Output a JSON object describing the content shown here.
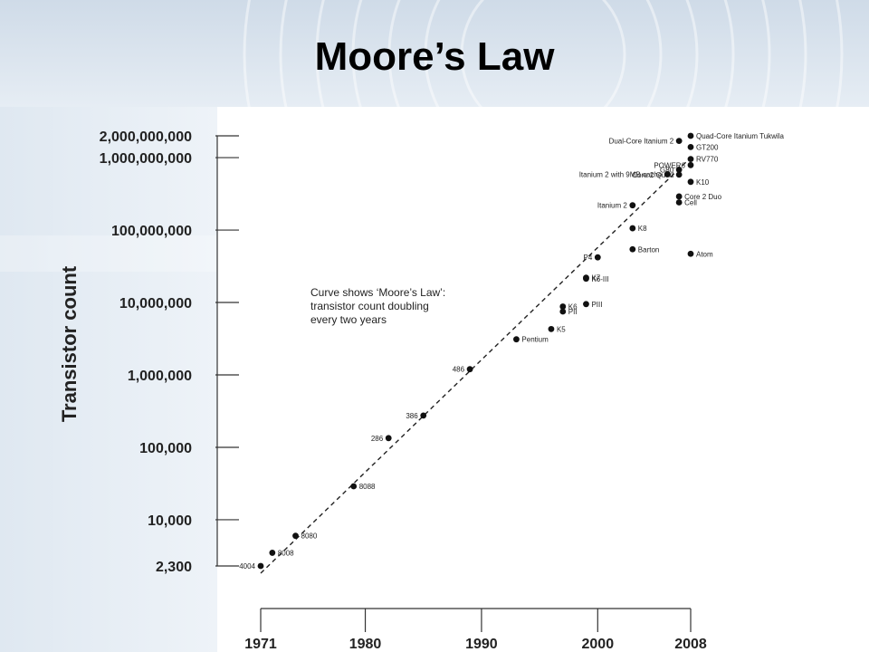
{
  "slide": {
    "title": "Moore’s Law"
  },
  "chart_data": {
    "type": "scatter",
    "title": "Moore’s Law",
    "xlabel": "",
    "ylabel": "Transistor count",
    "yscale": "log",
    "xlim": [
      1971,
      2008
    ],
    "ylim": [
      2300,
      2000000000
    ],
    "x_ticks": [
      {
        "value": 1971,
        "label": "1971"
      },
      {
        "value": 1980,
        "label": "1980"
      },
      {
        "value": 1990,
        "label": "1990"
      },
      {
        "value": 2000,
        "label": "2000"
      },
      {
        "value": 2008,
        "label": "2008"
      }
    ],
    "y_ticks": [
      {
        "value": 2000000000,
        "label": "2,000,000,000"
      },
      {
        "value": 1000000000,
        "label": "1,000,000,000"
      },
      {
        "value": 100000000,
        "label": "100,000,000"
      },
      {
        "value": 10000000,
        "label": "10,000,000"
      },
      {
        "value": 1000000,
        "label": "1,000,000"
      },
      {
        "value": 100000,
        "label": "100,000"
      },
      {
        "value": 10000,
        "label": "10,000"
      },
      {
        "value": 2300,
        "label": "2,300"
      }
    ],
    "annotation": [
      "Curve shows ‘Moore’s Law’:",
      "transistor count doubling",
      "every two years"
    ],
    "trend_line": {
      "x": [
        1971,
        2008
      ],
      "y": [
        2300,
        1000000000
      ]
    },
    "points": [
      {
        "name": "4004",
        "x": 1971,
        "y": 2300,
        "label_side": "left"
      },
      {
        "name": "8008",
        "x": 1972,
        "y": 3500,
        "label_side": "right"
      },
      {
        "name": "8080",
        "x": 1974,
        "y": 6000,
        "label_side": "right"
      },
      {
        "name": "8088",
        "x": 1979,
        "y": 29000,
        "label_side": "right"
      },
      {
        "name": "286",
        "x": 1982,
        "y": 134000,
        "label_side": "left"
      },
      {
        "name": "386",
        "x": 1985,
        "y": 275000,
        "label_side": "left"
      },
      {
        "name": "486",
        "x": 1989,
        "y": 1200000,
        "label_side": "left"
      },
      {
        "name": "Pentium",
        "x": 1993,
        "y": 3100000,
        "label_side": "right"
      },
      {
        "name": "K5",
        "x": 1996,
        "y": 4300000,
        "label_side": "right"
      },
      {
        "name": "K6",
        "x": 1997,
        "y": 8800000,
        "label_side": "right"
      },
      {
        "name": "PII",
        "x": 1997,
        "y": 7500000,
        "label_side": "right"
      },
      {
        "name": "PIII",
        "x": 1999,
        "y": 9500000,
        "label_side": "right"
      },
      {
        "name": "K6-III",
        "x": 1999,
        "y": 21300000,
        "label_side": "right"
      },
      {
        "name": "K7",
        "x": 1999,
        "y": 22000000,
        "label_side": "right"
      },
      {
        "name": "P4",
        "x": 2000,
        "y": 42000000,
        "label_side": "left"
      },
      {
        "name": "Barton",
        "x": 2003,
        "y": 54300000,
        "label_side": "right"
      },
      {
        "name": "K8",
        "x": 2003,
        "y": 105900000,
        "label_side": "right"
      },
      {
        "name": "Itanium 2",
        "x": 2003,
        "y": 220000000,
        "label_side": "left"
      },
      {
        "name": "Cell",
        "x": 2007,
        "y": 241000000,
        "label_side": "right"
      },
      {
        "name": "Core 2 Duo",
        "x": 2007,
        "y": 291000000,
        "label_side": "right"
      },
      {
        "name": "K10",
        "x": 2008,
        "y": 463000000,
        "label_side": "right"
      },
      {
        "name": "Core 2 Quad",
        "x": 2007,
        "y": 582000000,
        "label_side": "left"
      },
      {
        "name": "Itanium 2 with 9MB cache",
        "x": 2006,
        "y": 592000000,
        "label_side": "left"
      },
      {
        "name": "G80",
        "x": 2007,
        "y": 681000000,
        "label_side": "left"
      },
      {
        "name": "POWER6",
        "x": 2008,
        "y": 789000000,
        "label_side": "left"
      },
      {
        "name": "RV770",
        "x": 2008,
        "y": 956000000,
        "label_side": "right"
      },
      {
        "name": "Dual-Core Itanium 2",
        "x": 2007,
        "y": 1700000000,
        "label_side": "left"
      },
      {
        "name": "GT200",
        "x": 2008,
        "y": 1400000000,
        "label_side": "right"
      },
      {
        "name": "Quad-Core Itanium Tukwila",
        "x": 2008,
        "y": 2000000000,
        "label_side": "right"
      },
      {
        "name": "Atom",
        "x": 2008,
        "y": 47000000,
        "label_side": "right"
      }
    ]
  }
}
